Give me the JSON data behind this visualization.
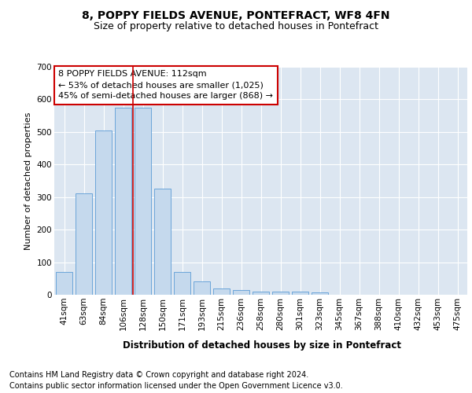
{
  "title": "8, POPPY FIELDS AVENUE, PONTEFRACT, WF8 4FN",
  "subtitle": "Size of property relative to detached houses in Pontefract",
  "xlabel": "Distribution of detached houses by size in Pontefract",
  "ylabel": "Number of detached properties",
  "footer_line1": "Contains HM Land Registry data © Crown copyright and database right 2024.",
  "footer_line2": "Contains public sector information licensed under the Open Government Licence v3.0.",
  "annotation_line1": "8 POPPY FIELDS AVENUE: 112sqm",
  "annotation_line2": "← 53% of detached houses are smaller (1,025)",
  "annotation_line3": "45% of semi-detached houses are larger (868) →",
  "categories": [
    "41sqm",
    "63sqm",
    "84sqm",
    "106sqm",
    "128sqm",
    "150sqm",
    "171sqm",
    "193sqm",
    "215sqm",
    "236sqm",
    "258sqm",
    "280sqm",
    "301sqm",
    "323sqm",
    "345sqm",
    "367sqm",
    "388sqm",
    "410sqm",
    "432sqm",
    "453sqm",
    "475sqm"
  ],
  "values": [
    70,
    312,
    505,
    575,
    575,
    325,
    70,
    40,
    20,
    15,
    10,
    10,
    10,
    7,
    0,
    0,
    0,
    0,
    0,
    0,
    0
  ],
  "bar_color": "#c5d9ed",
  "bar_edge_color": "#5b9bd5",
  "red_line_color": "#cc0000",
  "annotation_box_edge": "#cc0000",
  "fig_bg": "#ffffff",
  "plot_bg": "#dce6f1",
  "ylim": [
    0,
    700
  ],
  "yticks": [
    0,
    100,
    200,
    300,
    400,
    500,
    600,
    700
  ],
  "grid_color": "#ffffff",
  "title_fontsize": 10,
  "subtitle_fontsize": 9,
  "axis_label_fontsize": 8.5,
  "ylabel_fontsize": 8,
  "tick_fontsize": 7.5,
  "annotation_fontsize": 8,
  "footer_fontsize": 7
}
